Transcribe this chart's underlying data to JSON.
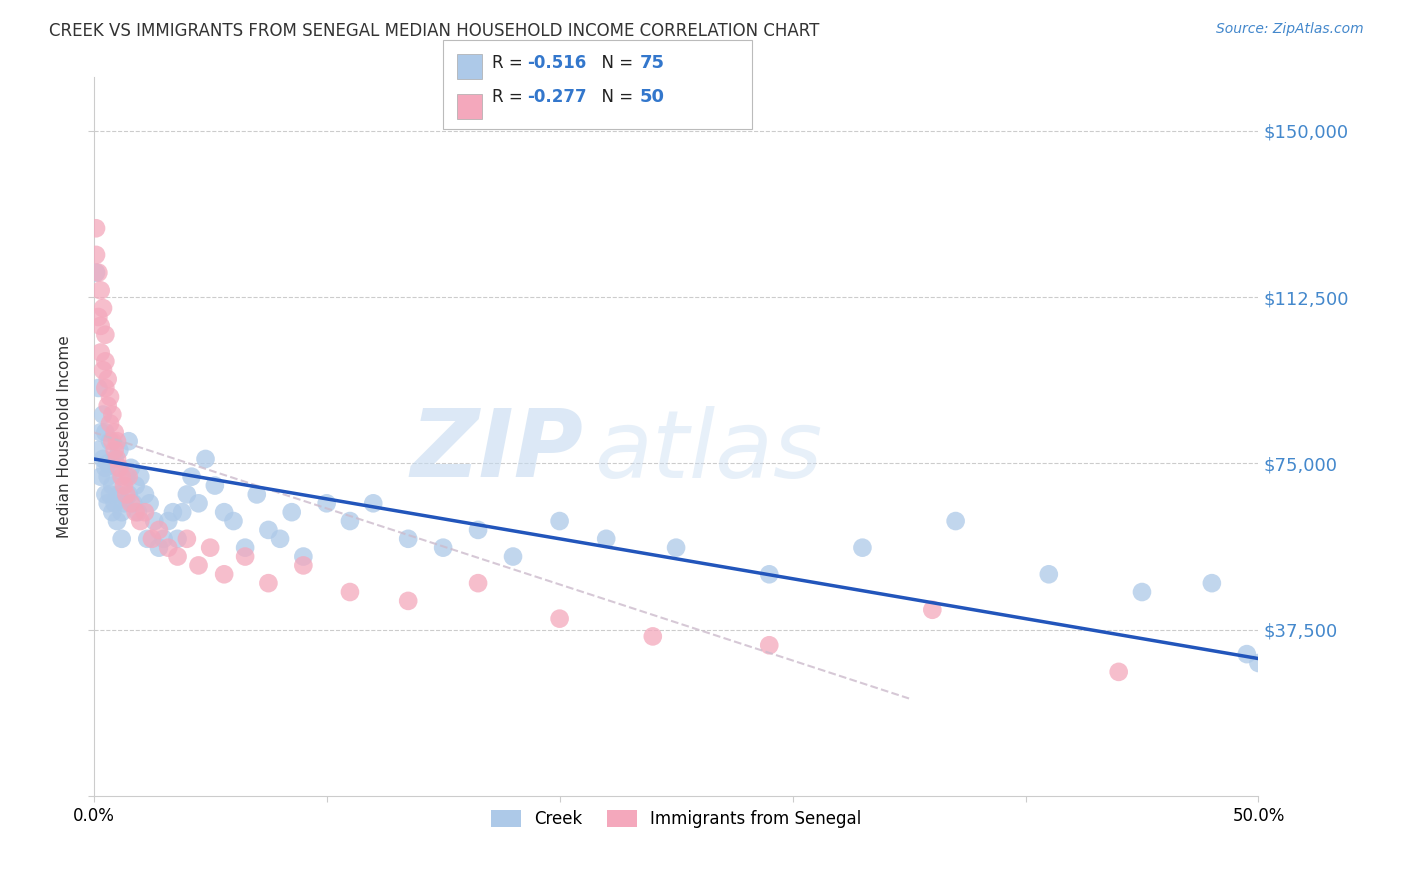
{
  "title": "CREEK VS IMMIGRANTS FROM SENEGAL MEDIAN HOUSEHOLD INCOME CORRELATION CHART",
  "source": "Source: ZipAtlas.com",
  "ylabel": "Median Household Income",
  "y_ticks": [
    0,
    37500,
    75000,
    112500,
    150000
  ],
  "y_tick_labels": [
    "",
    "$37,500",
    "$75,000",
    "$112,500",
    "$150,000"
  ],
  "xmin": 0.0,
  "xmax": 0.5,
  "ymin": 0,
  "ymax": 162000,
  "watermark_zip": "ZIP",
  "watermark_atlas": "atlas",
  "creek_color": "#adc9e8",
  "senegal_color": "#f4a8bc",
  "creek_line_color": "#2255bb",
  "senegal_line_color": "#ccbbcc",
  "creek_x": [
    0.001,
    0.002,
    0.002,
    0.003,
    0.003,
    0.004,
    0.004,
    0.005,
    0.005,
    0.005,
    0.006,
    0.006,
    0.006,
    0.007,
    0.007,
    0.008,
    0.008,
    0.009,
    0.009,
    0.01,
    0.01,
    0.011,
    0.011,
    0.012,
    0.012,
    0.013,
    0.014,
    0.015,
    0.015,
    0.016,
    0.017,
    0.018,
    0.019,
    0.02,
    0.022,
    0.023,
    0.024,
    0.026,
    0.028,
    0.03,
    0.032,
    0.034,
    0.036,
    0.038,
    0.04,
    0.042,
    0.045,
    0.048,
    0.052,
    0.056,
    0.06,
    0.065,
    0.07,
    0.075,
    0.08,
    0.085,
    0.09,
    0.1,
    0.11,
    0.12,
    0.135,
    0.15,
    0.165,
    0.18,
    0.2,
    0.22,
    0.25,
    0.29,
    0.33,
    0.37,
    0.41,
    0.45,
    0.48,
    0.495,
    0.5
  ],
  "creek_y": [
    118000,
    92000,
    78000,
    82000,
    72000,
    86000,
    76000,
    74000,
    68000,
    82000,
    72000,
    66000,
    75000,
    80000,
    68000,
    70000,
    64000,
    76000,
    66000,
    74000,
    62000,
    68000,
    78000,
    64000,
    58000,
    66000,
    72000,
    68000,
    80000,
    74000,
    66000,
    70000,
    64000,
    72000,
    68000,
    58000,
    66000,
    62000,
    56000,
    58000,
    62000,
    64000,
    58000,
    64000,
    68000,
    72000,
    66000,
    76000,
    70000,
    64000,
    62000,
    56000,
    68000,
    60000,
    58000,
    64000,
    54000,
    66000,
    62000,
    66000,
    58000,
    56000,
    60000,
    54000,
    62000,
    58000,
    56000,
    50000,
    56000,
    62000,
    50000,
    46000,
    48000,
    32000,
    30000
  ],
  "senegal_x": [
    0.001,
    0.001,
    0.002,
    0.002,
    0.003,
    0.003,
    0.003,
    0.004,
    0.004,
    0.005,
    0.005,
    0.005,
    0.006,
    0.006,
    0.007,
    0.007,
    0.008,
    0.008,
    0.009,
    0.009,
    0.01,
    0.01,
    0.011,
    0.012,
    0.013,
    0.014,
    0.015,
    0.016,
    0.018,
    0.02,
    0.022,
    0.025,
    0.028,
    0.032,
    0.036,
    0.04,
    0.045,
    0.05,
    0.056,
    0.065,
    0.075,
    0.09,
    0.11,
    0.135,
    0.165,
    0.2,
    0.24,
    0.29,
    0.36,
    0.44
  ],
  "senegal_y": [
    128000,
    122000,
    118000,
    108000,
    114000,
    106000,
    100000,
    110000,
    96000,
    104000,
    98000,
    92000,
    88000,
    94000,
    84000,
    90000,
    80000,
    86000,
    78000,
    82000,
    76000,
    80000,
    74000,
    72000,
    70000,
    68000,
    72000,
    66000,
    64000,
    62000,
    64000,
    58000,
    60000,
    56000,
    54000,
    58000,
    52000,
    56000,
    50000,
    54000,
    48000,
    52000,
    46000,
    44000,
    48000,
    40000,
    36000,
    34000,
    42000,
    28000
  ],
  "creek_line_x0": 0.0,
  "creek_line_y0": 76000,
  "creek_line_x1": 0.5,
  "creek_line_y1": 31000,
  "senegal_line_x0": 0.0,
  "senegal_line_y0": 82000,
  "senegal_line_x1": 0.35,
  "senegal_line_y1": 22000
}
